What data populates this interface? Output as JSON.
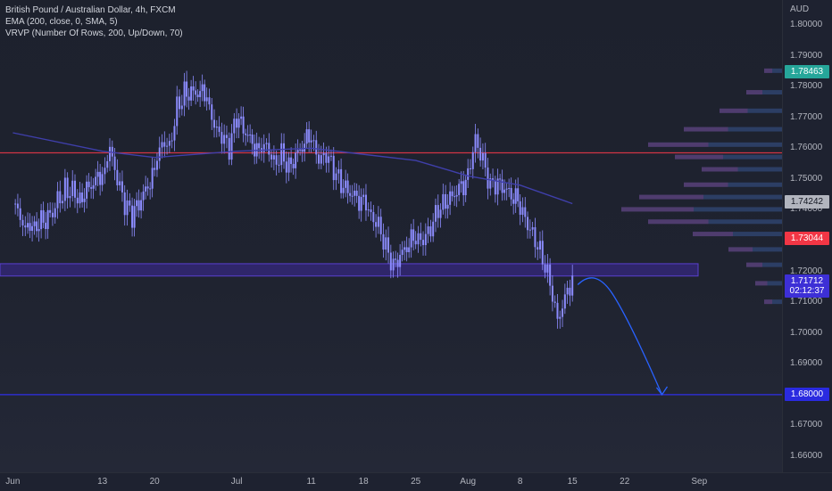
{
  "legend": {
    "title": "British Pound / Australian Dollar, 4h, FXCM",
    "ema": "EMA (200, close, 0, SMA, 5)",
    "vrvp": "VRVP (Number Of Rows, 200, Up/Down, 70)"
  },
  "price_axis": {
    "currency": "AUD",
    "ticks": [
      "1.80000",
      "1.79000",
      "1.78000",
      "1.77000",
      "1.76000",
      "1.75000",
      "1.74000",
      "1.72000",
      "1.71000",
      "1.70000",
      "1.69000",
      "1.68000",
      "1.67000",
      "1.66000"
    ],
    "badges": {
      "high": {
        "value": "1.78463",
        "color": "#26a69a"
      },
      "ema": {
        "value": "1.74242",
        "color": "#b2b5be"
      },
      "red_line": {
        "value": "1.73044",
        "color": "#f23645"
      },
      "current": {
        "value": "1.71712",
        "countdown": "02:12:37",
        "color": "#3d2fd6"
      },
      "target": {
        "value": "1.68000",
        "color": "#2a2ae0"
      }
    }
  },
  "time_axis": {
    "ticks": [
      "Jun",
      "13",
      "20",
      "Jul",
      "11",
      "18",
      "25",
      "Aug",
      "8",
      "15",
      "22",
      "Sep"
    ]
  },
  "colors": {
    "candle": "#8c8cff",
    "ema_line": "#3f3faa",
    "resistance": "#d23545",
    "zone": "#3c2a9a",
    "target_line": "#2f2fe8",
    "arrow": "#2962ff",
    "profile_up": "#3a5a9a",
    "profile_down": "#7a3a7a"
  },
  "chart_data": {
    "type": "candlestick",
    "symbol": "GBPAUD",
    "timeframe": "4h",
    "y_range": [
      1.655,
      1.805
    ],
    "path_points": [
      {
        "date": "2022-06-01",
        "price": 1.742
      },
      {
        "date": "2022-06-03",
        "price": 1.733
      },
      {
        "date": "2022-06-06",
        "price": 1.738
      },
      {
        "date": "2022-06-08",
        "price": 1.747
      },
      {
        "date": "2022-06-10",
        "price": 1.744
      },
      {
        "date": "2022-06-13",
        "price": 1.752
      },
      {
        "date": "2022-06-14",
        "price": 1.76
      },
      {
        "date": "2022-06-15",
        "price": 1.75
      },
      {
        "date": "2022-06-16",
        "price": 1.742
      },
      {
        "date": "2022-06-17",
        "price": 1.738
      },
      {
        "date": "2022-06-20",
        "price": 1.752
      },
      {
        "date": "2022-06-21",
        "price": 1.762
      },
      {
        "date": "2022-06-22",
        "price": 1.76
      },
      {
        "date": "2022-06-23",
        "price": 1.773
      },
      {
        "date": "2022-06-24",
        "price": 1.778
      },
      {
        "date": "2022-06-27",
        "price": 1.778
      },
      {
        "date": "2022-06-28",
        "price": 1.767
      },
      {
        "date": "2022-06-29",
        "price": 1.764
      },
      {
        "date": "2022-06-30",
        "price": 1.76
      },
      {
        "date": "2022-07-01",
        "price": 1.77
      },
      {
        "date": "2022-07-04",
        "price": 1.758
      },
      {
        "date": "2022-07-05",
        "price": 1.761
      },
      {
        "date": "2022-07-06",
        "price": 1.755
      },
      {
        "date": "2022-07-07",
        "price": 1.758
      },
      {
        "date": "2022-07-08",
        "price": 1.754
      },
      {
        "date": "2022-07-11",
        "price": 1.765
      },
      {
        "date": "2022-07-12",
        "price": 1.756
      },
      {
        "date": "2022-07-13",
        "price": 1.758
      },
      {
        "date": "2022-07-14",
        "price": 1.753
      },
      {
        "date": "2022-07-15",
        "price": 1.748
      },
      {
        "date": "2022-07-18",
        "price": 1.742
      },
      {
        "date": "2022-07-19",
        "price": 1.738
      },
      {
        "date": "2022-07-20",
        "price": 1.735
      },
      {
        "date": "2022-07-21",
        "price": 1.728
      },
      {
        "date": "2022-07-22",
        "price": 1.722
      },
      {
        "date": "2022-07-25",
        "price": 1.732
      },
      {
        "date": "2022-07-26",
        "price": 1.73
      },
      {
        "date": "2022-07-27",
        "price": 1.734
      },
      {
        "date": "2022-07-28",
        "price": 1.74
      },
      {
        "date": "2022-07-29",
        "price": 1.742
      },
      {
        "date": "2022-08-01",
        "price": 1.75
      },
      {
        "date": "2022-08-02",
        "price": 1.763
      },
      {
        "date": "2022-08-03",
        "price": 1.756
      },
      {
        "date": "2022-08-04",
        "price": 1.748
      },
      {
        "date": "2022-08-05",
        "price": 1.749
      },
      {
        "date": "2022-08-08",
        "price": 1.742
      },
      {
        "date": "2022-08-09",
        "price": 1.735
      },
      {
        "date": "2022-08-10",
        "price": 1.73
      },
      {
        "date": "2022-08-11",
        "price": 1.724
      },
      {
        "date": "2022-08-12",
        "price": 1.716
      },
      {
        "date": "2022-08-13",
        "price": 1.704
      },
      {
        "date": "2022-08-15",
        "price": 1.718
      }
    ],
    "ema_200": [
      {
        "date": "2022-06-01",
        "price": 1.765
      },
      {
        "date": "2022-06-13",
        "price": 1.759
      },
      {
        "date": "2022-06-20",
        "price": 1.757
      },
      {
        "date": "2022-07-01",
        "price": 1.759
      },
      {
        "date": "2022-07-11",
        "price": 1.76
      },
      {
        "date": "2022-07-25",
        "price": 1.756
      },
      {
        "date": "2022-08-01",
        "price": 1.751
      },
      {
        "date": "2022-08-08",
        "price": 1.748
      },
      {
        "date": "2022-08-15",
        "price": 1.742
      }
    ],
    "levels": [
      {
        "name": "resistance",
        "price": 1.7585
      },
      {
        "name": "target",
        "price": 1.68
      }
    ],
    "zone": {
      "from": 1.7185,
      "to": 1.7225
    },
    "projection_arrow": {
      "from": {
        "date": "2022-08-15",
        "price": 1.718
      },
      "to": {
        "date": "2022-08-27",
        "price": 1.68
      }
    }
  }
}
